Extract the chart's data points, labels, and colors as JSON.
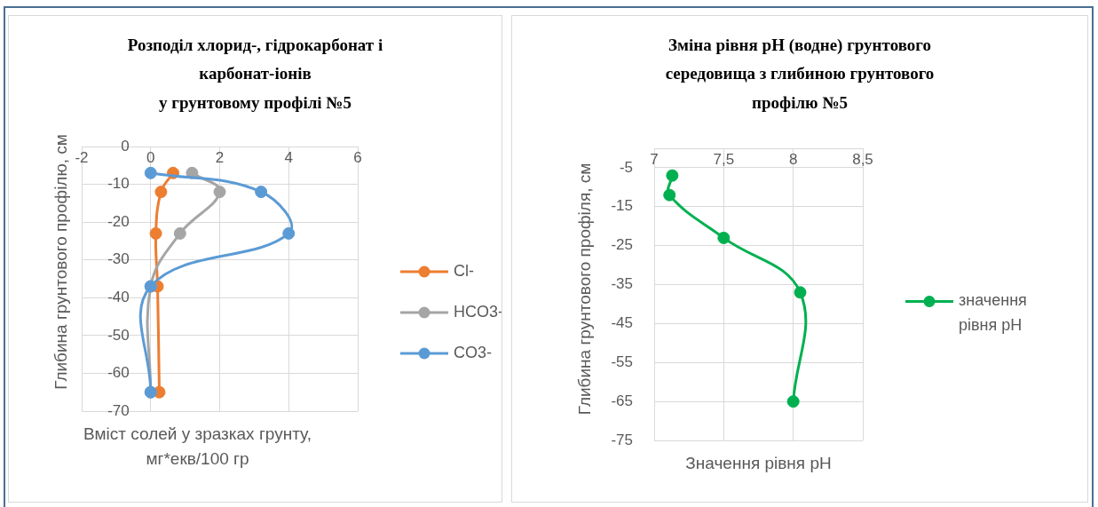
{
  "chart_data": [
    {
      "type": "line",
      "title": "Розподіл хлорид-, гідрокарбонат і\nкарбонат-іонів\nу грунтовому профілі №5",
      "xlabel": "Вміст солей у зразках грунту, мг*екв/100 гр",
      "ylabel": "Глибина грунтового профілю, см",
      "series": [
        {
          "name": "Cl-",
          "color": "#ed7d31",
          "x": [
            0.65,
            0.3,
            0.15,
            0.2,
            0.25
          ],
          "values": [
            -7,
            -12,
            -23,
            -37,
            -65
          ]
        },
        {
          "name": "HCO3-",
          "color": "#a5a5a5",
          "x": [
            1.2,
            2,
            0.85,
            0,
            0
          ],
          "values": [
            -7,
            -12,
            -23,
            -37,
            -65
          ]
        },
        {
          "name": "CO3-",
          "color": "#5b9bd5",
          "x": [
            0,
            3.2,
            4,
            0,
            0
          ],
          "values": [
            -7,
            -12,
            -23,
            -37,
            -65
          ]
        }
      ],
      "xlim": [
        -2,
        6
      ],
      "xticks": [
        -2,
        0,
        2,
        4,
        6
      ],
      "ylim": [
        -70,
        0
      ],
      "yticks": [
        0,
        -10,
        -20,
        -30,
        -40,
        -50,
        -60,
        -70
      ],
      "grid": true,
      "legend": "right",
      "marker": "circle",
      "line_style": "solid"
    },
    {
      "type": "line",
      "title": "Зміна рівня pH (водне) грунтового\nсередовища з глибиною грунтового\nпрофілю №5",
      "xlabel": "Значення рівня pH",
      "ylabel": "Глибина грунтового профіля, см",
      "series": [
        {
          "name": "значення рівня pH",
          "color": "#00b050",
          "x": [
            7.13,
            7.11,
            7.5,
            8.05,
            8
          ],
          "values": [
            -7,
            -12,
            -23,
            -37,
            -65
          ]
        }
      ],
      "xlim": [
        7,
        8.5
      ],
      "xticks": [
        7,
        {
          "value": 7.5,
          "label": "7,5"
        },
        8,
        {
          "value": 8.5,
          "label": "8,5"
        }
      ],
      "ylim": [
        -75,
        0
      ],
      "yticks": [
        -5,
        -15,
        -25,
        -35,
        -45,
        -55,
        -65,
        -75
      ],
      "grid": true,
      "legend": "right",
      "marker": "circle",
      "line_style": "solid"
    }
  ]
}
